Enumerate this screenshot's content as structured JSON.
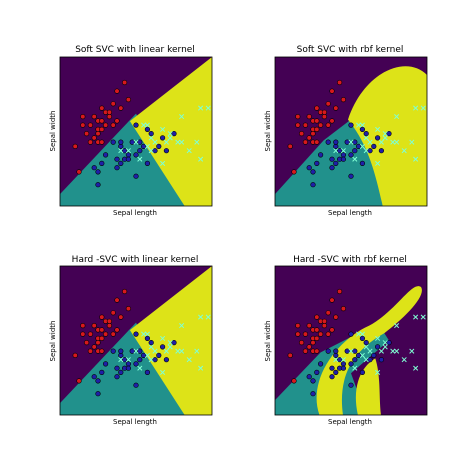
{
  "figure": {
    "background": "#ffffff"
  },
  "chart_data": [
    {
      "type": "scatter",
      "title": "Soft SVC with linear kernel",
      "xlabel": "Sepal length",
      "ylabel": "Sepal width",
      "xlim": [
        4.0,
        8.0
      ],
      "ylim": [
        1.5,
        5.0
      ],
      "grid": false,
      "kernel": "linear",
      "regions": {
        "class0": "#440154",
        "class1": "#21918c",
        "class2": "#dde318"
      }
    },
    {
      "type": "scatter",
      "title": "Soft SVC with rbf kernel",
      "xlabel": "Sepal length",
      "ylabel": "Sepal width",
      "xlim": [
        4.0,
        8.0
      ],
      "ylim": [
        1.5,
        5.0
      ],
      "grid": false,
      "kernel": "rbf",
      "regions": {
        "class0": "#440154",
        "class1": "#21918c",
        "class2": "#dde318"
      }
    },
    {
      "type": "scatter",
      "title": "Hard -SVC with linear kernel",
      "xlabel": "Sepal length",
      "ylabel": "Sepal width",
      "xlim": [
        4.0,
        8.0
      ],
      "ylim": [
        1.5,
        5.0
      ],
      "grid": false,
      "kernel": "linear",
      "regions": {
        "class0": "#440154",
        "class1": "#21918c",
        "class2": "#dde318"
      }
    },
    {
      "type": "scatter",
      "title": "Hard -SVC with rbf kernel",
      "xlabel": "Sepal length",
      "ylabel": "Sepal width",
      "xlim": [
        4.0,
        8.0
      ],
      "ylim": [
        1.5,
        5.0
      ],
      "grid": false,
      "kernel": "rbf",
      "regions": {
        "class0": "#440154",
        "class1": "#21918c",
        "class2": "#dde318"
      }
    }
  ],
  "points": {
    "class0": {
      "marker": "circle",
      "color": "#d7191c",
      "edge": "#000000",
      "values": [
        [
          4.6,
          3.4
        ],
        [
          4.7,
          3.2
        ],
        [
          4.8,
          3.0
        ],
        [
          4.8,
          3.4
        ],
        [
          4.9,
          3.1
        ],
        [
          4.9,
          3.6
        ],
        [
          5.0,
          3.0
        ],
        [
          5.0,
          3.3
        ],
        [
          5.0,
          3.5
        ],
        [
          5.1,
          3.5
        ],
        [
          5.1,
          3.8
        ],
        [
          5.2,
          3.4
        ],
        [
          5.2,
          3.7
        ],
        [
          5.3,
          3.7
        ],
        [
          5.4,
          3.4
        ],
        [
          5.4,
          3.9
        ],
        [
          5.5,
          4.2
        ],
        [
          5.6,
          3.8
        ],
        [
          5.7,
          4.4
        ],
        [
          5.8,
          4.0
        ],
        [
          4.4,
          2.9
        ],
        [
          4.6,
          3.6
        ],
        [
          5.0,
          3.2
        ],
        [
          5.1,
          3.3
        ],
        [
          5.5,
          3.5
        ],
        [
          4.5,
          2.3
        ],
        [
          5.3,
          3.6
        ],
        [
          5.1,
          3.0
        ]
      ]
    },
    "class1": {
      "marker": "circle",
      "color": "#1f1fa8",
      "edge": "#000000",
      "values": [
        [
          4.9,
          2.4
        ],
        [
          5.0,
          2.0
        ],
        [
          5.0,
          2.3
        ],
        [
          5.1,
          2.5
        ],
        [
          5.2,
          2.7
        ],
        [
          5.5,
          2.4
        ],
        [
          5.5,
          2.6
        ],
        [
          5.6,
          2.5
        ],
        [
          5.6,
          2.9
        ],
        [
          5.6,
          3.0
        ],
        [
          5.7,
          2.6
        ],
        [
          5.7,
          2.8
        ],
        [
          5.8,
          2.7
        ],
        [
          5.9,
          3.0
        ],
        [
          6.0,
          2.2
        ],
        [
          6.0,
          2.7
        ],
        [
          6.0,
          3.4
        ],
        [
          6.1,
          2.8
        ],
        [
          6.1,
          3.0
        ],
        [
          6.2,
          2.9
        ],
        [
          6.3,
          2.5
        ],
        [
          6.3,
          3.3
        ],
        [
          6.4,
          3.2
        ],
        [
          6.6,
          2.9
        ],
        [
          6.7,
          3.1
        ],
        [
          6.8,
          2.8
        ],
        [
          7.0,
          3.2
        ],
        [
          5.4,
          3.0
        ],
        [
          5.8,
          2.6
        ],
        [
          6.5,
          2.8
        ]
      ]
    },
    "class2": {
      "marker": "x",
      "color": "#7fffd4",
      "values": [
        [
          5.6,
          2.8
        ],
        [
          5.8,
          2.8
        ],
        [
          6.0,
          3.0
        ],
        [
          6.2,
          3.4
        ],
        [
          6.3,
          2.9
        ],
        [
          6.4,
          2.8
        ],
        [
          6.4,
          3.1
        ],
        [
          6.5,
          3.0
        ],
        [
          6.7,
          2.5
        ],
        [
          6.7,
          3.3
        ],
        [
          6.8,
          3.0
        ],
        [
          6.9,
          3.1
        ],
        [
          7.1,
          3.0
        ],
        [
          7.2,
          3.0
        ],
        [
          7.2,
          3.6
        ],
        [
          7.4,
          2.8
        ],
        [
          7.7,
          2.6
        ],
        [
          7.7,
          3.8
        ],
        [
          7.9,
          3.8
        ],
        [
          6.1,
          2.6
        ],
        [
          6.9,
          3.2
        ],
        [
          7.6,
          3.0
        ],
        [
          6.3,
          3.4
        ]
      ]
    }
  }
}
